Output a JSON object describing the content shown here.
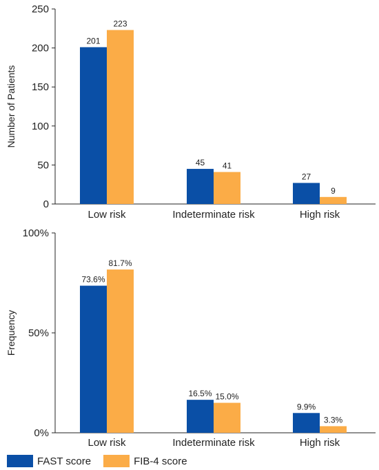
{
  "colors": {
    "fast": "#0a4fa6",
    "fib4": "#fbac47",
    "axis": "#222222"
  },
  "chart_data": [
    {
      "type": "bar",
      "ylabel": "Number of Patients",
      "ylim": [
        0,
        250
      ],
      "yticks": [
        0,
        50,
        100,
        150,
        200,
        250
      ],
      "ytick_labels": [
        "0",
        "50",
        "100",
        "150",
        "200",
        "250"
      ],
      "categories": [
        "Low risk",
        "Indeterminate risk",
        "High risk"
      ],
      "series": [
        {
          "name": "FAST score",
          "values": [
            201,
            45,
            27
          ],
          "labels": [
            "201",
            "45",
            "27"
          ]
        },
        {
          "name": "FIB-4 score",
          "values": [
            223,
            41,
            9
          ],
          "labels": [
            "223",
            "41",
            "9"
          ]
        }
      ]
    },
    {
      "type": "bar",
      "ylabel": "Frequency",
      "ylim": [
        0,
        100
      ],
      "yticks": [
        0,
        50,
        100
      ],
      "ytick_labels": [
        "0%",
        "50%",
        "100%"
      ],
      "categories": [
        "Low risk",
        "Indeterminate risk",
        "High risk"
      ],
      "series": [
        {
          "name": "FAST score",
          "values": [
            73.6,
            16.5,
            9.9
          ],
          "labels": [
            "73.6%",
            "16.5%",
            "9.9%"
          ]
        },
        {
          "name": "FIB-4 score",
          "values": [
            81.7,
            15.0,
            3.3
          ],
          "labels": [
            "81.7%",
            "15.0%",
            "3.3%"
          ]
        }
      ]
    }
  ],
  "legend": {
    "items": [
      "FAST score",
      "FIB-4 score"
    ]
  }
}
